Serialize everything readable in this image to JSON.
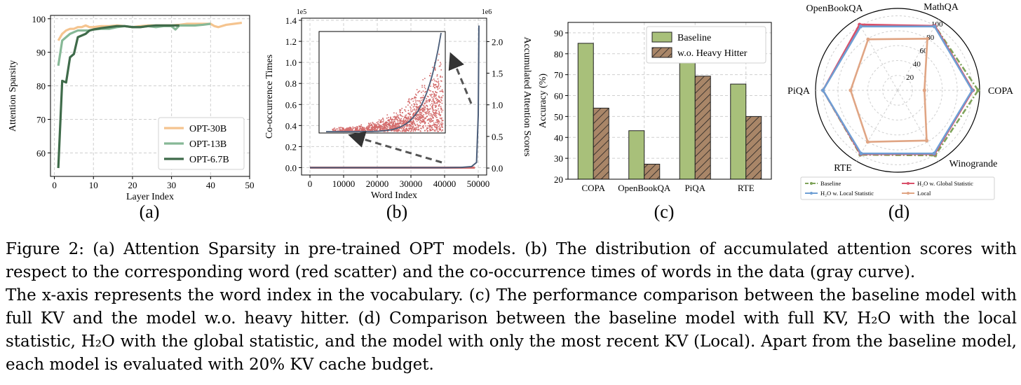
{
  "panels": {
    "a": {
      "label": "(a)",
      "chart_data": {
        "type": "line",
        "xlabel": "Layer Index",
        "ylabel": "Attention Sparsity",
        "xlim": [
          -1,
          50
        ],
        "ylim": [
          53,
          101
        ],
        "xticks": [
          0,
          10,
          20,
          30,
          40,
          50
        ],
        "yticks": [
          60,
          70,
          80,
          90,
          100
        ],
        "grid": true,
        "legend_position": "bottom-right",
        "series": [
          {
            "name": "OPT-30B",
            "color": "#f5c48f",
            "x": [
              1,
              2,
              3,
              4,
              5,
              6,
              7,
              8,
              9,
              10,
              12,
              14,
              16,
              18,
              20,
              22,
              24,
              26,
              28,
              30,
              32,
              34,
              36,
              38,
              40,
              41,
              42,
              44,
              46,
              48
            ],
            "y": [
              93.5,
              95.5,
              96.5,
              97,
              97,
              97.5,
              97.5,
              98,
              97.5,
              97.5,
              97.8,
              97.8,
              98,
              97.8,
              97.5,
              97.8,
              98,
              98,
              98,
              98,
              98.2,
              98.5,
              98.5,
              98.5,
              98.5,
              97.8,
              97.5,
              98.2,
              98.5,
              98.8
            ]
          },
          {
            "name": "OPT-13B",
            "color": "#86b896",
            "x": [
              1,
              2,
              3,
              4,
              5,
              6,
              7,
              8,
              9,
              10,
              12,
              14,
              16,
              18,
              20,
              22,
              24,
              26,
              28,
              30,
              31,
              32,
              34,
              36,
              38,
              40
            ],
            "y": [
              86,
              93.5,
              94.5,
              95.5,
              96,
              96.5,
              96.5,
              96.5,
              96.5,
              96.8,
              97,
              97,
              97.5,
              97.8,
              97.5,
              97.5,
              97.8,
              97.5,
              97.8,
              97.8,
              96.8,
              98,
              98,
              98,
              98.2,
              98.5
            ]
          },
          {
            "name": "OPT-6.7B",
            "color": "#3f6b4a",
            "x": [
              1,
              2,
              3,
              4,
              5,
              6,
              7,
              8,
              9,
              10,
              12,
              14,
              16,
              18,
              20,
              22,
              24,
              26,
              28,
              30,
              32
            ],
            "y": [
              55.5,
              81.5,
              81,
              88.5,
              89.5,
              94.5,
              95,
              95.5,
              96.5,
              96.8,
              97.2,
              97.5,
              97.8,
              97.8,
              97.5,
              97.5,
              97.8,
              98,
              98,
              98,
              98
            ]
          }
        ]
      }
    },
    "b": {
      "label": "(b)",
      "chart_data": {
        "type": "scatter",
        "xlabel": "Word Index",
        "ylabel": "Co-occurrence Times",
        "y2label": "Accumulated Attention Scores",
        "y_scale_label": "1e5",
        "y2_scale_label": "1e6",
        "xlim": [
          -2500,
          52500
        ],
        "ylim": [
          -0.07,
          1.42
        ],
        "y2lim": [
          -0.11,
          2.37
        ],
        "xticks": [
          0,
          10000,
          20000,
          30000,
          40000,
          50000
        ],
        "yticks": [
          0.0,
          0.2,
          0.4,
          0.6,
          0.8,
          1.0,
          1.2,
          1.4
        ],
        "y2ticks": [
          0.0,
          0.5,
          1.0,
          1.5,
          2.0
        ],
        "grid": true,
        "series": [
          {
            "name": "accumulated attention scores (red scatter)",
            "color": "#d36b6b",
            "note": "dense point cloud close to zero across word indices, rising sharply near index 50000"
          },
          {
            "name": "co-occurrence times (gray curve)",
            "color": "#4a5c78",
            "x": [
              0,
              10000,
              20000,
              30000,
              40000,
              45000,
              48000,
              49500,
              50000,
              50200
            ],
            "y": [
              0,
              0,
              0,
              0,
              0,
              0.002,
              0.01,
              0.05,
              0.5,
              1.35
            ]
          }
        ],
        "inset": {
          "description": "zoomed view of red scatter with gray curve"
        }
      }
    },
    "c": {
      "label": "(c)",
      "chart_data": {
        "type": "bar",
        "categories": [
          "COPA",
          "OpenBookQA",
          "PiQA",
          "RTE"
        ],
        "ylabel": "Accuracy (%)",
        "ylim": [
          20,
          95
        ],
        "yticks": [
          20,
          30,
          40,
          50,
          60,
          70,
          80,
          90
        ],
        "grid": true,
        "legend_position": "top-right",
        "series": [
          {
            "name": "Baseline",
            "color": "#a8c07a",
            "values": [
              85,
              43.2,
              79,
              65.5
            ]
          },
          {
            "name": "w.o. Heavy Hitter",
            "color": "#a98668",
            "hatch": true,
            "values": [
              54,
              27.2,
              69.3,
              50
            ]
          }
        ]
      }
    },
    "d": {
      "label": "(d)",
      "chart_data": {
        "type": "radar",
        "categories": [
          "COPA",
          "MathQA",
          "OpenBookQA",
          "PiQA",
          "RTE",
          "Winogrande"
        ],
        "radial_ticks": [
          20,
          40,
          60,
          80,
          100
        ],
        "rmax": 110,
        "grid": true,
        "legend_position": "bottom",
        "series": [
          {
            "name": "Baseline",
            "color": "#7fa35a",
            "values": [
              108,
              100,
              100,
              100,
              100,
              101
            ]
          },
          {
            "name": "H2O w. Local Statistic",
            "color": "#6f9fd4",
            "values": [
              100,
              99,
              99,
              100,
              98,
              98
            ]
          },
          {
            "name": "H2O w. Global Statistic",
            "color": "#d9506a",
            "values": [
              101,
              100,
              102,
              100,
              99,
              99
            ]
          },
          {
            "name": "Local",
            "color": "#e0a584",
            "values": [
              36,
              80,
              79,
              63,
              80,
              78
            ]
          }
        ],
        "legend_labels": {
          "baseline": "Baseline",
          "h2o_local": "H₂O w. Local Statistic",
          "h2o_global": "H₂O w. Global Statistic",
          "local": "Local"
        }
      }
    }
  },
  "caption": {
    "p1": "Figure 2: (a) Attention Sparsity in pre-trained OPT models. (b) The distribution of accumulated attention scores with respect to the corresponding word (red scatter) and the co-occurrence times of words in the data (gray curve).",
    "p2": "The x-axis represents the word index in the vocabulary. (c) The performance comparison between the baseline model with full KV and the model w.o. heavy hitter. (d) Comparison between the baseline model with full KV, H₂O with the local statistic, H₂O with the global statistic, and the model with only the most recent KV (Local). Apart from the baseline model, each model is evaluated with 20% KV cache budget."
  }
}
